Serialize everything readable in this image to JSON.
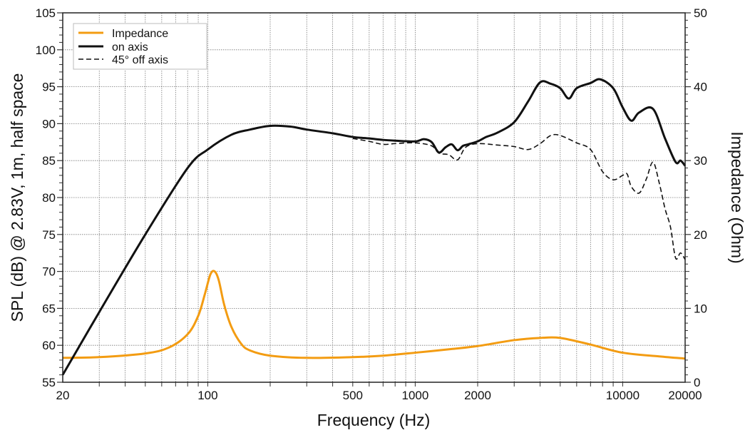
{
  "chart_data": {
    "type": "line",
    "xlabel": "Frequency (Hz)",
    "ylabel": "SPL (dB) @ 2.83V, 1m, half space",
    "y2label": "Impedance (Ohm)",
    "xscale": "log",
    "xlim": [
      20,
      20000
    ],
    "ylim": [
      55,
      105
    ],
    "y2lim": [
      0,
      50
    ],
    "grid": true,
    "legend_placement": "top-left",
    "xticks": [
      20,
      100,
      500,
      1000,
      2000,
      10000,
      20000
    ],
    "xtick_labels": [
      "20",
      "100",
      "500",
      "1000",
      "2000",
      "10000",
      "20000"
    ],
    "yticks": [
      55,
      60,
      65,
      70,
      75,
      80,
      85,
      90,
      95,
      100,
      105
    ],
    "y2ticks": [
      0,
      10,
      20,
      30,
      40,
      50
    ],
    "series": [
      {
        "name": "Impedance",
        "axis": "right",
        "color": "#f39c12",
        "style": "solid",
        "x": [
          20,
          30,
          50,
          65,
          80,
          90,
          97,
          103,
          108,
          113,
          120,
          130,
          145,
          160,
          200,
          300,
          500,
          700,
          1000,
          1500,
          2000,
          3000,
          4000,
          5000,
          7000,
          10000,
          15000,
          20000
        ],
        "y": [
          3.3,
          3.4,
          3.9,
          4.7,
          6.5,
          9.0,
          12.0,
          14.6,
          15.0,
          13.8,
          10.5,
          7.5,
          5.2,
          4.3,
          3.6,
          3.3,
          3.4,
          3.6,
          4.0,
          4.5,
          4.9,
          5.7,
          6.0,
          6.0,
          5.1,
          4.0,
          3.5,
          3.2
        ]
      },
      {
        "name": "on axis",
        "axis": "left",
        "color": "#111111",
        "style": "solid",
        "x": [
          20,
          30,
          50,
          80,
          100,
          130,
          160,
          200,
          250,
          300,
          400,
          500,
          600,
          700,
          800,
          1000,
          1100,
          1200,
          1300,
          1400,
          1500,
          1600,
          1700,
          1800,
          2000,
          2200,
          2500,
          3000,
          3500,
          4000,
          4500,
          5000,
          5500,
          6000,
          7000,
          7800,
          9000,
          10000,
          11000,
          12000,
          14000,
          16000,
          18000,
          19000,
          20000
        ],
        "y": [
          56,
          64.5,
          75,
          84,
          86.5,
          88.5,
          89.2,
          89.7,
          89.6,
          89.2,
          88.7,
          88.2,
          88.0,
          87.8,
          87.7,
          87.6,
          87.9,
          87.5,
          86.1,
          86.8,
          87.2,
          86.4,
          87.0,
          87.2,
          87.6,
          88.2,
          88.8,
          90.2,
          93.0,
          95.6,
          95.4,
          94.8,
          93.4,
          94.8,
          95.5,
          96.0,
          94.8,
          92.2,
          90.4,
          91.5,
          92.0,
          88.0,
          84.8,
          85.0,
          84.3
        ]
      },
      {
        "name": "45° off axis",
        "axis": "left",
        "color": "#111111",
        "style": "dashed",
        "x": [
          500,
          600,
          700,
          800,
          1000,
          1200,
          1300,
          1450,
          1600,
          1750,
          2000,
          2500,
          3000,
          3500,
          4000,
          4500,
          5000,
          6000,
          7000,
          8000,
          9000,
          10000,
          10500,
          11000,
          12000,
          13000,
          14000,
          15000,
          16000,
          17000,
          18000,
          19000,
          20000
        ],
        "y": [
          88.0,
          87.6,
          87.2,
          87.3,
          87.4,
          87.0,
          86.0,
          85.8,
          85.1,
          86.8,
          87.3,
          87.1,
          86.9,
          86.5,
          87.3,
          88.4,
          88.4,
          87.4,
          86.5,
          83.5,
          82.4,
          83.0,
          83.2,
          81.5,
          80.6,
          82.5,
          84.8,
          82.0,
          78.5,
          76.0,
          71.8,
          72.5,
          71.6
        ]
      }
    ]
  }
}
